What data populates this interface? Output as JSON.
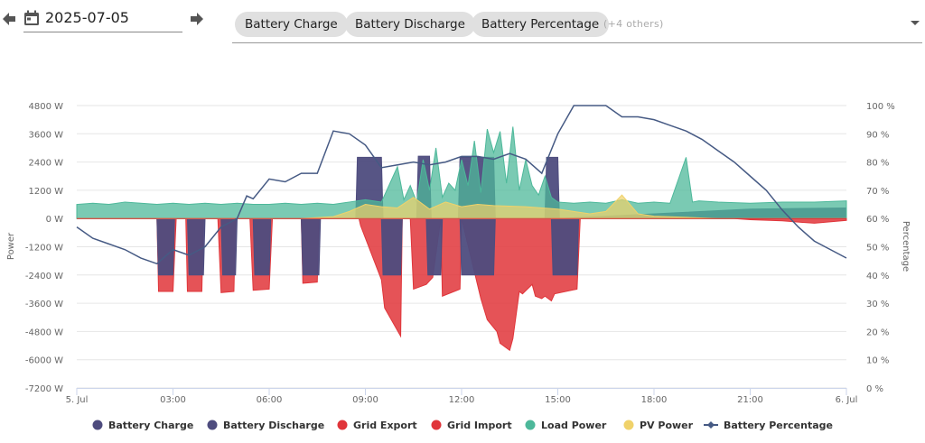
{
  "toolbar": {
    "date": "2025-07-05",
    "prev_icon": "arrow-left-icon",
    "next_icon": "arrow-right-icon",
    "calendar_icon": "calendar-icon",
    "selected_series": [
      "Battery Charge",
      "Battery Discharge",
      "Battery Percentage"
    ],
    "others_label": "(+4 others)"
  },
  "colors": {
    "battery_charge": "#4e4c7e",
    "battery_discharge": "#4e4c7e",
    "grid_export": "#e0353a",
    "grid_import": "#e0353a",
    "load_power": "#4db89a",
    "pv_power": "#f0d26a",
    "battery_percentage": "#465a84",
    "grid_line": "#e6e6e6",
    "axis_line": "#ccd6eb"
  },
  "chart_data": {
    "type": "area",
    "title": "",
    "xlabel": "",
    "ylabel": "Power",
    "y2label": "Percentage",
    "xlim": [
      0,
      24
    ],
    "ylim": [
      -7200,
      4800
    ],
    "y2lim": [
      0,
      100
    ],
    "x_tick_labels": [
      "5. Jul",
      "03:00",
      "06:00",
      "09:00",
      "12:00",
      "15:00",
      "18:00",
      "21:00",
      "6. Jul"
    ],
    "x_ticks_hours": [
      0,
      3,
      6,
      9,
      12,
      15,
      18,
      21,
      24
    ],
    "y_tick_labels": [
      "4800 W",
      "3600 W",
      "2400 W",
      "1200 W",
      "0 W",
      "-1200 W",
      "-2400 W",
      "-3600 W",
      "-4800 W",
      "-6000 W",
      "-7200 W"
    ],
    "y_ticks": [
      4800,
      3600,
      2400,
      1200,
      0,
      -1200,
      -2400,
      -3600,
      -4800,
      -6000,
      -7200
    ],
    "y2_tick_labels": [
      "100 %",
      "90 %",
      "80 %",
      "70 %",
      "60 %",
      "50 %",
      "40 %",
      "30 %",
      "20 %",
      "10 %",
      "0 %"
    ],
    "y2_ticks": [
      100,
      90,
      80,
      70,
      60,
      50,
      40,
      30,
      20,
      10,
      0
    ],
    "legend": [
      "Battery Charge",
      "Battery Discharge",
      "Grid Export",
      "Grid Import",
      "Load Power",
      "PV Power",
      "Battery Percentage"
    ],
    "legend_position": "bottom",
    "grid": true,
    "series": [
      {
        "name": "Grid Import",
        "axis": "left",
        "x": [
          0,
          2.4,
          2.5,
          2.55,
          3.0,
          3.1,
          3.4,
          3.45,
          3.9,
          3.95,
          4.4,
          4.5,
          4.9,
          4.95,
          5.4,
          5.5,
          6.0,
          6.1,
          7.0,
          7.05,
          7.5,
          7.55,
          8.8,
          8.85,
          9.5,
          9.6,
          10.1,
          10.15,
          10.4,
          10.5,
          10.9,
          11.1,
          11.35,
          11.4,
          11.95,
          12.0,
          12.6,
          12.8,
          13.1,
          13.2,
          13.5,
          13.6,
          13.8,
          13.9,
          14.2,
          14.3,
          14.5,
          14.6,
          14.8,
          14.9,
          15.6,
          15.7,
          24
        ],
        "values": [
          0,
          0,
          0,
          -3100,
          -3100,
          0,
          0,
          -3100,
          -3100,
          0,
          0,
          -3150,
          -3100,
          0,
          0,
          -3050,
          -3000,
          0,
          0,
          -2750,
          -2700,
          0,
          0,
          -300,
          -2600,
          -3800,
          -5000,
          0,
          0,
          -3000,
          -2800,
          -2500,
          0,
          -3300,
          -3000,
          0,
          -3400,
          -4300,
          -4800,
          -5300,
          -5600,
          -5100,
          -3100,
          -3200,
          -2800,
          -3300,
          -3400,
          -3300,
          -3500,
          -3200,
          -3000,
          0,
          0
        ]
      },
      {
        "name": "Battery Discharge",
        "axis": "left",
        "x": [
          0,
          2.5,
          2.55,
          3.0,
          3.05,
          3.45,
          3.5,
          3.95,
          4.0,
          4.5,
          4.55,
          4.95,
          5.0,
          5.5,
          5.55,
          6.0,
          6.05,
          7.0,
          7.05,
          7.55,
          7.6,
          9.5,
          9.55,
          10.1,
          10.15,
          10.9,
          10.95,
          11.35,
          11.4,
          11.95,
          12.0,
          13.0,
          13.05,
          14.8,
          14.85,
          15.6,
          15.65,
          24
        ],
        "values": [
          0,
          0,
          -2400,
          -2400,
          0,
          0,
          -2400,
          -2400,
          0,
          0,
          -2400,
          -2400,
          0,
          0,
          -2400,
          -2400,
          0,
          0,
          -2400,
          -2400,
          0,
          0,
          -2400,
          -2400,
          0,
          0,
          -2400,
          -2400,
          0,
          0,
          -2400,
          -2400,
          0,
          0,
          -2400,
          -2400,
          0,
          0
        ]
      },
      {
        "name": "Battery Charge",
        "axis": "left",
        "x": [
          0,
          8.7,
          8.75,
          9.5,
          9.55,
          10.6,
          10.65,
          11.0,
          11.05,
          11.9,
          11.95,
          13.0,
          13.05,
          14.6,
          14.65,
          15.0,
          15.05,
          21.0,
          24
        ],
        "values": [
          0,
          0,
          2600,
          2600,
          0,
          0,
          2650,
          2650,
          0,
          0,
          2600,
          2600,
          0,
          0,
          2600,
          2600,
          0,
          400,
          450
        ]
      },
      {
        "name": "Load Power",
        "axis": "left",
        "x": [
          0,
          0.5,
          1,
          1.5,
          2,
          2.5,
          3,
          3.5,
          4,
          4.5,
          5,
          5.5,
          6,
          6.5,
          7,
          7.5,
          8,
          8.5,
          9,
          9.5,
          10,
          10.2,
          10.4,
          10.6,
          10.8,
          11,
          11.2,
          11.4,
          11.6,
          11.8,
          12,
          12.2,
          12.4,
          12.6,
          12.8,
          13,
          13.2,
          13.4,
          13.6,
          13.8,
          14,
          14.2,
          14.4,
          14.6,
          14.8,
          15,
          15.5,
          16,
          16.5,
          17,
          17.5,
          18,
          18.5,
          19,
          19.2,
          19.4,
          20,
          21,
          22,
          23,
          24
        ],
        "values": [
          600,
          650,
          600,
          700,
          650,
          600,
          650,
          600,
          650,
          600,
          650,
          600,
          600,
          650,
          600,
          650,
          600,
          700,
          800,
          700,
          2200,
          800,
          1400,
          700,
          2500,
          1200,
          3000,
          900,
          1500,
          1200,
          2500,
          1400,
          3300,
          1100,
          3800,
          2800,
          3700,
          1500,
          3900,
          1200,
          2500,
          1400,
          1000,
          1800,
          900,
          700,
          650,
          700,
          650,
          800,
          650,
          700,
          650,
          2600,
          700,
          750,
          700,
          650,
          700,
          700,
          750
        ]
      },
      {
        "name": "PV Power",
        "axis": "left",
        "x": [
          0,
          7,
          8,
          8.5,
          9,
          9.5,
          10,
          10.5,
          11,
          11.5,
          12,
          12.5,
          13,
          14,
          15,
          16,
          16.5,
          17,
          17.5,
          18,
          19,
          20,
          24
        ],
        "values": [
          0,
          0,
          80,
          300,
          600,
          500,
          450,
          900,
          400,
          700,
          500,
          600,
          550,
          500,
          400,
          200,
          300,
          1000,
          200,
          100,
          50,
          0,
          0
        ]
      },
      {
        "name": "Grid Export",
        "axis": "left",
        "x": [
          0,
          20.5,
          21,
          22,
          23,
          24
        ],
        "values": [
          0,
          0,
          -50,
          -100,
          -200,
          -80
        ]
      },
      {
        "name": "Battery Percentage",
        "axis": "right",
        "x": [
          0,
          0.5,
          1,
          1.5,
          2,
          2.5,
          3,
          3.5,
          4,
          4.5,
          5,
          5.3,
          5.5,
          6,
          6.5,
          7,
          7.5,
          8,
          8.5,
          9,
          9.5,
          10,
          10.5,
          11,
          11.5,
          12,
          12.5,
          13,
          13.5,
          14,
          14.5,
          15,
          15.5,
          16,
          16.5,
          17,
          17.5,
          18,
          18.5,
          19,
          19.5,
          20,
          20.5,
          21,
          21.5,
          22,
          22.5,
          23,
          23.5,
          24
        ],
        "values": [
          57,
          53,
          51,
          49,
          46,
          44,
          49,
          47,
          50,
          57,
          60,
          68,
          67,
          74,
          73,
          76,
          76,
          91,
          90,
          86,
          78,
          79,
          80,
          79,
          80,
          82,
          82,
          81,
          83,
          81,
          76,
          90,
          100,
          100,
          100,
          96,
          96,
          95,
          93,
          91,
          88,
          84,
          80,
          75,
          70,
          63,
          57,
          52,
          49,
          46
        ]
      }
    ]
  }
}
